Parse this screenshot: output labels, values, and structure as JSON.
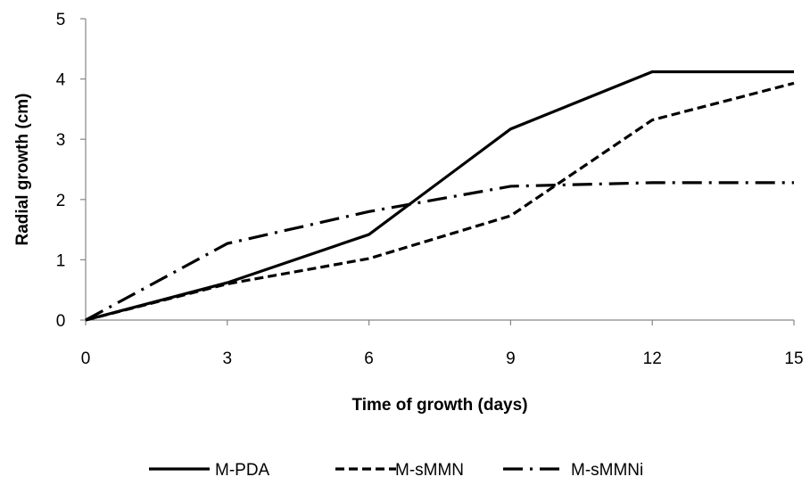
{
  "chart_data": {
    "type": "line",
    "xlabel": "Time of growth (days)",
    "ylabel": "Radial growth (cm)",
    "x": [
      0,
      3,
      6,
      9,
      12,
      15
    ],
    "xlim": [
      0,
      15
    ],
    "ylim": [
      0,
      5
    ],
    "xticks": [
      "0",
      "3",
      "6",
      "9",
      "12",
      "15"
    ],
    "yticks": [
      "0",
      "1",
      "2",
      "3",
      "4",
      "5"
    ],
    "grid": false,
    "legend_position": "bottom",
    "series": [
      {
        "name": "M-PDA",
        "values": [
          0,
          0.62,
          1.42,
          3.17,
          4.12,
          4.12
        ],
        "style": "solid",
        "color": "#000000"
      },
      {
        "name": "M-sMMN",
        "values": [
          0,
          0.6,
          1.02,
          1.73,
          3.32,
          3.93
        ],
        "style": "dashed",
        "color": "#000000"
      },
      {
        "name": "M-sMMNi",
        "values": [
          0,
          1.27,
          1.8,
          2.22,
          2.28,
          2.28
        ],
        "style": "dashdot",
        "color": "#000000"
      }
    ]
  }
}
